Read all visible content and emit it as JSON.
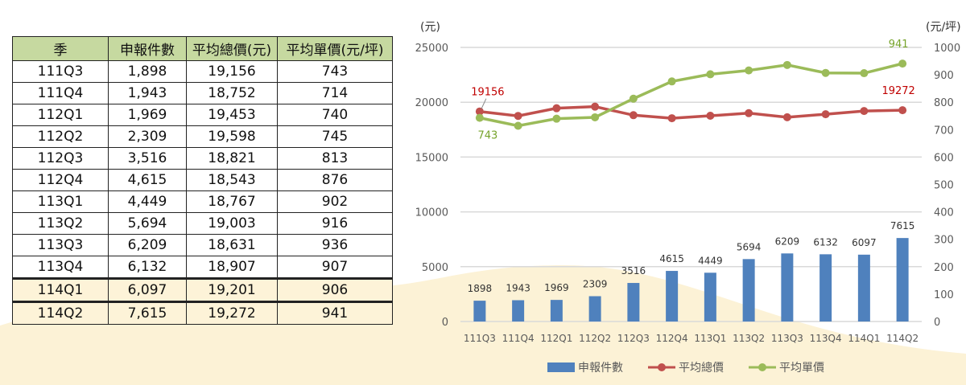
{
  "table": {
    "headers": [
      "季",
      "申報件數",
      "平均總價(元)",
      "平均單價(元/坪)"
    ],
    "rows": [
      [
        "111Q3",
        "1,898",
        "19,156",
        "743"
      ],
      [
        "111Q4",
        "1,943",
        "18,752",
        "714"
      ],
      [
        "112Q1",
        "1,969",
        "19,453",
        "740"
      ],
      [
        "112Q2",
        "2,309",
        "19,598",
        "745"
      ],
      [
        "112Q3",
        "3,516",
        "18,821",
        "813"
      ],
      [
        "112Q4",
        "4,615",
        "18,543",
        "876"
      ],
      [
        "113Q1",
        "4,449",
        "18,767",
        "902"
      ],
      [
        "113Q2",
        "5,694",
        "19,003",
        "916"
      ],
      [
        "113Q3",
        "6,209",
        "18,631",
        "936"
      ],
      [
        "113Q4",
        "6,132",
        "18,907",
        "907"
      ],
      [
        "114Q1",
        "6,097",
        "19,201",
        "906"
      ],
      [
        "114Q2",
        "7,615",
        "19,272",
        "941"
      ]
    ],
    "header_color": "#c6d9a0"
  },
  "chart_data": {
    "type": "bar+line",
    "categories": [
      "111Q3",
      "111Q4",
      "112Q1",
      "112Q2",
      "112Q3",
      "112Q4",
      "113Q1",
      "113Q2",
      "113Q3",
      "113Q4",
      "114Q1",
      "114Q2"
    ],
    "left_axis": {
      "label": "(元)",
      "range": [
        0,
        25000
      ],
      "ticks": [
        0,
        5000,
        10000,
        15000,
        20000,
        25000
      ]
    },
    "right_axis": {
      "label": "(元/坪)",
      "range": [
        0,
        1000
      ],
      "ticks": [
        0,
        100,
        200,
        300,
        400,
        500,
        600,
        700,
        800,
        900,
        1000
      ]
    },
    "grid": true,
    "legend": "bottom",
    "series": [
      {
        "name": "申報件數",
        "type": "bar",
        "axis": "left",
        "color": "#4f81bd",
        "values": [
          1898,
          1943,
          1969,
          2309,
          3516,
          4615,
          4449,
          5694,
          6209,
          6132,
          6097,
          7615
        ],
        "labels": [
          "1898",
          "1943",
          "1969",
          "2309",
          "3516",
          "4615",
          "4449",
          "5694",
          "6209",
          "6132",
          "6097",
          "7615"
        ]
      },
      {
        "name": "平均總價",
        "type": "line",
        "axis": "left",
        "color": "#c0504d",
        "values": [
          19156,
          18752,
          19453,
          19598,
          18821,
          18543,
          18767,
          19003,
          18631,
          18907,
          19201,
          19272
        ],
        "labels": [
          "19156",
          "",
          "",
          "",
          "",
          "",
          "",
          "",
          "",
          "",
          "",
          "19272"
        ]
      },
      {
        "name": "平均單價",
        "type": "line",
        "axis": "right",
        "color": "#9bbb59",
        "values": [
          743,
          714,
          740,
          745,
          813,
          876,
          902,
          916,
          936,
          907,
          906,
          941
        ],
        "labels": [
          "743",
          "",
          "",
          "",
          "",
          "",
          "",
          "",
          "",
          "",
          "",
          "941"
        ]
      }
    ]
  }
}
